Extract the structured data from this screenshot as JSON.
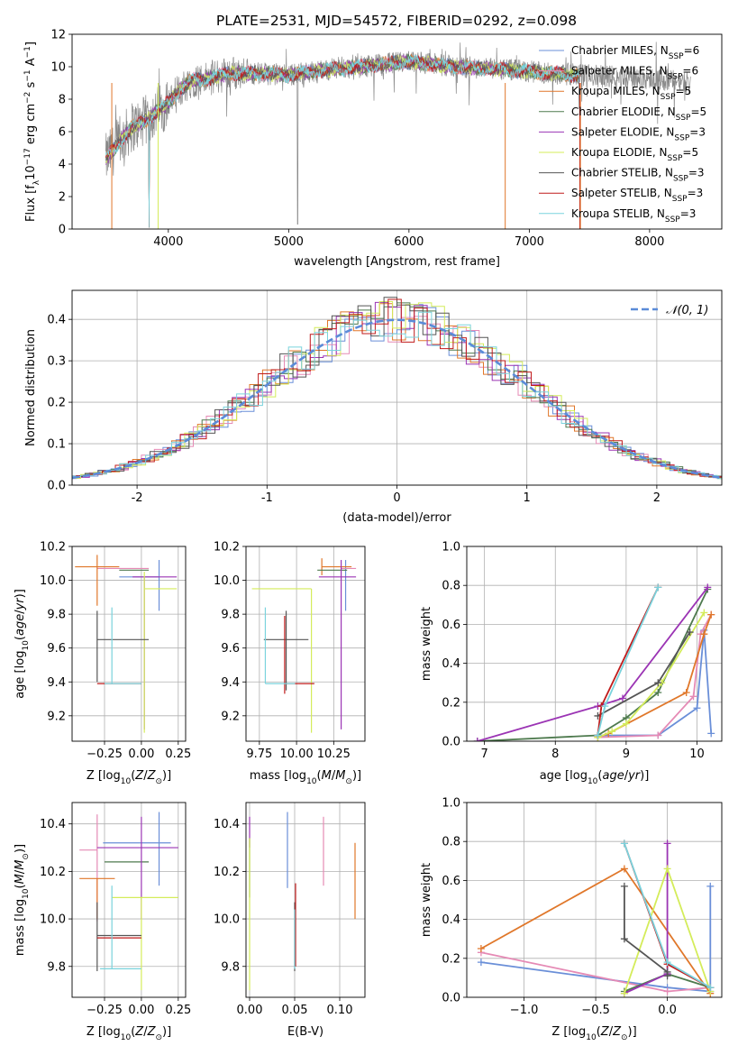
{
  "figure_title": "PLATE=2531, MJD=54572, FIBERID=0292, z=0.098",
  "colors": {
    "Chabrier MILES": "#6a8fd8",
    "Salpeter MILES": "#e58ab5",
    "Kroupa MILES": "#e0772a",
    "Chabrier ELODIE": "#4e7a4e",
    "Salpeter ELODIE": "#9b34b4",
    "Kroupa ELODIE": "#d4ec5a",
    "Chabrier STELIB": "#555555",
    "Salpeter STELIB": "#c01b1b",
    "Kroupa STELIB": "#7ad3dd",
    "data": "#888888"
  },
  "chart_data": [
    {
      "id": "spectrum",
      "type": "line",
      "title": "PLATE=2531, MJD=54572, FIBERID=0292, z=0.098",
      "xlabel": "wavelength [Angstrom, rest frame]",
      "ylabel": "Flux [f_λ 10^-17 erg cm^-2 s^-1 A^-1]",
      "xlim": [
        3200,
        8600
      ],
      "ylim": [
        0,
        12
      ],
      "xticks": [
        4000,
        5000,
        6000,
        7000,
        8000
      ],
      "yticks": [
        0,
        2,
        4,
        6,
        8,
        10,
        12
      ],
      "legend_position": "right",
      "legend": [
        {
          "label": "Chabrier MILES, N_SSP=6",
          "base": "Chabrier MILES, N",
          "sub": "SSP",
          "tail": "=6",
          "color_key": "Chabrier MILES"
        },
        {
          "label": "Salpeter MILES, N_SSP=6",
          "base": "Salpeter MILES, N",
          "sub": "SSP",
          "tail": "=6",
          "color_key": "Salpeter MILES"
        },
        {
          "label": "Kroupa MILES, N_SSP=5",
          "base": "Kroupa MILES, N",
          "sub": "SSP",
          "tail": "=5",
          "color_key": "Kroupa MILES"
        },
        {
          "label": "Chabrier ELODIE, N_SSP=5",
          "base": "Chabrier ELODIE, N",
          "sub": "SSP",
          "tail": "=5",
          "color_key": "Chabrier ELODIE"
        },
        {
          "label": "Salpeter ELODIE, N_SSP=3",
          "base": "Salpeter ELODIE, N",
          "sub": "SSP",
          "tail": "=3",
          "color_key": "Salpeter ELODIE"
        },
        {
          "label": "Kroupa ELODIE, N_SSP=5",
          "base": "Kroupa ELODIE, N",
          "sub": "SSP",
          "tail": "=5",
          "color_key": "Kroupa ELODIE"
        },
        {
          "label": "Chabrier STELIB, N_SSP=3",
          "base": "Chabrier STELIB, N",
          "sub": "SSP",
          "tail": "=3",
          "color_key": "Chabrier STELIB"
        },
        {
          "label": "Salpeter STELIB, N_SSP=3",
          "base": "Salpeter STELIB, N",
          "sub": "SSP",
          "tail": "=3",
          "color_key": "Salpeter STELIB"
        },
        {
          "label": "Kroupa STELIB, N_SSP=3",
          "base": "Kroupa STELIB, N",
          "sub": "SSP",
          "tail": "=3",
          "color_key": "Kroupa STELIB"
        }
      ],
      "continuum": {
        "x": [
          3480,
          3600,
          3700,
          3800,
          3900,
          4000,
          4100,
          4200,
          4300,
          4500,
          4700,
          5000,
          5300,
          5600,
          6000,
          6400,
          6800,
          7200,
          7600,
          8000,
          8340
        ],
        "y": [
          4.3,
          5.4,
          6.3,
          6.6,
          7.2,
          7.8,
          8.6,
          9.2,
          9.2,
          9.6,
          9.6,
          9.5,
          9.8,
          10.0,
          10.3,
          10.0,
          9.8,
          9.6,
          9.4,
          9.3,
          9.0
        ]
      },
      "data_range": [
        3480,
        8340
      ],
      "models_range": [
        3480,
        7420
      ]
    },
    {
      "id": "residuals",
      "type": "histogram",
      "xlabel": "(data-model)/error",
      "ylabel": "Normed distribution",
      "xlim": [
        -2.5,
        2.5
      ],
      "ylim": [
        0,
        0.47
      ],
      "xticks": [
        -2,
        -1,
        0,
        1,
        2
      ],
      "yticks": [
        0.0,
        0.1,
        0.2,
        0.3,
        0.4
      ],
      "legend": "𝒩(0, 1)",
      "legend_position": "top-right",
      "bin_width": 0.1,
      "reference": {
        "name": "𝒩(0, 1)",
        "mean": 0,
        "sigma": 1,
        "color": "#5b8bd8"
      }
    },
    {
      "id": "age-vs-Z",
      "type": "errorbar",
      "xlabel": "Z [log10(Z/Z⊙)]",
      "ylabel": "age [log10(age/yr)]",
      "xlim": [
        -0.47,
        0.3
      ],
      "ylim": [
        9.05,
        10.2
      ],
      "xticks": [
        -0.25,
        0.0,
        0.25
      ],
      "xticklabels": [
        "−0.25",
        "0.00",
        "0.25"
      ],
      "yticks": [
        9.2,
        9.4,
        9.6,
        9.8,
        10.0,
        10.2
      ],
      "points": [
        {
          "model": "Chabrier MILES",
          "x": 0.12,
          "xerr": [
            0.27,
            0.0
          ],
          "y": 10.02,
          "yerr": [
            0.2,
            0.1
          ]
        },
        {
          "model": "Salpeter MILES",
          "x": -0.3,
          "xerr": [
            0.0,
            0.35
          ],
          "y": 10.07,
          "yerr": [
            0.0,
            0.0
          ]
        },
        {
          "model": "Kroupa MILES",
          "x": -0.3,
          "xerr": [
            0.15,
            0.15
          ],
          "y": 10.08,
          "yerr": [
            0.23,
            0.07
          ]
        },
        {
          "model": "Chabrier ELODIE",
          "x": 0.05,
          "xerr": [
            0.2,
            0.0
          ],
          "y": 10.06,
          "yerr": [
            0.0,
            0.0
          ]
        },
        {
          "model": "Salpeter ELODIE",
          "x": 0.02,
          "xerr": [
            0.08,
            0.22
          ],
          "y": 10.02,
          "yerr": [
            0.9,
            0.0
          ]
        },
        {
          "model": "Kroupa ELODIE",
          "x": 0.02,
          "xerr": [
            0.0,
            0.22
          ],
          "y": 9.95,
          "yerr": [
            0.85,
            0.1
          ]
        },
        {
          "model": "Chabrier STELIB",
          "x": -0.3,
          "xerr": [
            0.0,
            0.35
          ],
          "y": 9.65,
          "yerr": [
            0.25,
            0.17
          ]
        },
        {
          "model": "Salpeter STELIB",
          "x": -0.2,
          "xerr": [
            0.1,
            0.2
          ],
          "y": 9.39,
          "yerr": [
            0.0,
            0.0
          ]
        },
        {
          "model": "Kroupa STELIB",
          "x": -0.2,
          "xerr": [
            0.05,
            0.2
          ],
          "y": 9.39,
          "yerr": [
            0.0,
            0.45
          ]
        }
      ]
    },
    {
      "id": "age-vs-mass",
      "type": "errorbar",
      "xlabel": "mass [log10(M/M⊙)]",
      "xlim": [
        9.66,
        10.46
      ],
      "ylim": [
        9.05,
        10.2
      ],
      "xticks": [
        9.75,
        10.0,
        10.25
      ],
      "xticklabels": [
        "9.75",
        "10.00",
        "10.25"
      ],
      "yticks": [
        9.2,
        9.4,
        9.6,
        9.8,
        10.0,
        10.2
      ],
      "points": [
        {
          "model": "Chabrier MILES",
          "x": 10.33,
          "xerr": [
            0.0,
            0.0
          ],
          "y": 10.02,
          "yerr": [
            0.2,
            0.1
          ]
        },
        {
          "model": "Salpeter MILES",
          "x": 10.3,
          "xerr": [
            0.0,
            0.1
          ],
          "y": 10.07,
          "yerr": [
            0.0,
            0.0
          ]
        },
        {
          "model": "Kroupa MILES",
          "x": 10.17,
          "xerr": [
            0.0,
            0.2
          ],
          "y": 10.08,
          "yerr": [
            0.05,
            0.05
          ]
        },
        {
          "model": "Chabrier ELODIE",
          "x": 10.24,
          "xerr": [
            0.1,
            0.1
          ],
          "y": 10.06,
          "yerr": [
            0.0,
            0.0
          ]
        },
        {
          "model": "Salpeter ELODIE",
          "x": 10.3,
          "xerr": [
            0.15,
            0.1
          ],
          "y": 10.02,
          "yerr": [
            0.9,
            0.1
          ]
        },
        {
          "model": "Kroupa ELODIE",
          "x": 10.1,
          "xerr": [
            0.4,
            0.0
          ],
          "y": 9.95,
          "yerr": [
            0.85,
            0.0
          ]
        },
        {
          "model": "Chabrier STELIB",
          "x": 9.93,
          "xerr": [
            0.15,
            0.15
          ],
          "y": 9.65,
          "yerr": [
            0.3,
            0.17
          ]
        },
        {
          "model": "Salpeter STELIB",
          "x": 9.92,
          "xerr": [
            0.0,
            0.2
          ],
          "y": 9.39,
          "yerr": [
            0.06,
            0.4
          ]
        },
        {
          "model": "Kroupa STELIB",
          "x": 9.79,
          "xerr": [
            0.0,
            0.2
          ],
          "y": 9.39,
          "yerr": [
            0.0,
            0.45
          ]
        }
      ]
    },
    {
      "id": "weights-vs-age",
      "type": "line",
      "xlabel": "age [log10(age/yr)]",
      "ylabel": "mass weight",
      "xlim": [
        6.75,
        10.35
      ],
      "ylim": [
        0,
        1.0
      ],
      "xticks": [
        7,
        8,
        9,
        10
      ],
      "yticks": [
        0.0,
        0.2,
        0.4,
        0.6,
        0.8,
        1.0
      ],
      "series": [
        {
          "model": "Chabrier MILES",
          "x": [
            8.6,
            9.45,
            10.0,
            10.1,
            10.2
          ],
          "y": [
            0.03,
            0.03,
            0.17,
            0.57,
            0.04
          ]
        },
        {
          "model": "Salpeter MILES",
          "x": [
            8.6,
            9.45,
            9.95,
            10.05,
            10.2
          ],
          "y": [
            0.02,
            0.03,
            0.23,
            0.55,
            0.65
          ]
        },
        {
          "model": "Kroupa MILES",
          "x": [
            8.6,
            8.75,
            9.85,
            10.1,
            10.2
          ],
          "y": [
            0.02,
            0.04,
            0.25,
            0.55,
            0.65
          ]
        },
        {
          "model": "Chabrier ELODIE",
          "x": [
            6.9,
            8.6,
            9.0,
            9.45,
            10.15
          ],
          "y": [
            0.0,
            0.03,
            0.12,
            0.25,
            0.78
          ]
        },
        {
          "model": "Salpeter ELODIE",
          "x": [
            6.9,
            8.6,
            8.95,
            10.15
          ],
          "y": [
            0.0,
            0.18,
            0.22,
            0.79
          ]
        },
        {
          "model": "Kroupa ELODIE",
          "x": [
            8.6,
            8.8,
            9.0,
            9.5,
            10.1
          ],
          "y": [
            0.02,
            0.05,
            0.09,
            0.3,
            0.66
          ]
        },
        {
          "model": "Chabrier STELIB",
          "x": [
            8.6,
            9.45,
            9.9
          ],
          "y": [
            0.13,
            0.3,
            0.56
          ]
        },
        {
          "model": "Salpeter STELIB",
          "x": [
            8.6,
            8.65,
            9.45
          ],
          "y": [
            0.03,
            0.18,
            0.79
          ]
        },
        {
          "model": "Kroupa STELIB",
          "x": [
            8.6,
            8.7,
            9.45
          ],
          "y": [
            0.03,
            0.18,
            0.79
          ]
        }
      ]
    },
    {
      "id": "mass-vs-Z",
      "type": "errorbar",
      "xlabel": "Z [log10(Z/Z⊙)]",
      "ylabel": "mass [log10(M/M⊙)]",
      "xlim": [
        -0.47,
        0.3
      ],
      "ylim": [
        9.67,
        10.49
      ],
      "xticks": [
        -0.25,
        0.0,
        0.25
      ],
      "xticklabels": [
        "−0.25",
        "0.00",
        "0.25"
      ],
      "yticks": [
        9.8,
        10.0,
        10.2,
        10.4
      ],
      "points": [
        {
          "model": "Chabrier MILES",
          "x": 0.12,
          "xerr": [
            0.38,
            0.08
          ],
          "y": 10.32,
          "yerr": [
            0.18,
            0.13
          ]
        },
        {
          "model": "Salpeter MILES",
          "x": -0.3,
          "xerr": [
            0.12,
            0.0
          ],
          "y": 10.29,
          "yerr": [
            0.3,
            0.15
          ]
        },
        {
          "model": "Kroupa MILES",
          "x": -0.3,
          "xerr": [
            0.12,
            0.12
          ],
          "y": 10.17,
          "yerr": [
            0.17,
            0.0
          ]
        },
        {
          "model": "Chabrier ELODIE",
          "x": -0.1,
          "xerr": [
            0.15,
            0.15
          ],
          "y": 10.24,
          "yerr": [
            0.0,
            0.0
          ]
        },
        {
          "model": "Salpeter ELODIE",
          "x": 0.0,
          "xerr": [
            0.3,
            0.25
          ],
          "y": 10.3,
          "yerr": [
            0.3,
            0.13
          ]
        },
        {
          "model": "Kroupa ELODIE",
          "x": 0.0,
          "xerr": [
            0.2,
            0.25
          ],
          "y": 10.09,
          "yerr": [
            0.39,
            0.0
          ]
        },
        {
          "model": "Chabrier STELIB",
          "x": -0.3,
          "xerr": [
            0.0,
            0.3
          ],
          "y": 9.93,
          "yerr": [
            0.15,
            0.14
          ]
        },
        {
          "model": "Salpeter STELIB",
          "x": -0.2,
          "xerr": [
            0.1,
            0.2
          ],
          "y": 9.92,
          "yerr": [
            0.0,
            0.0
          ]
        },
        {
          "model": "Kroupa STELIB",
          "x": -0.2,
          "xerr": [
            0.08,
            0.2
          ],
          "y": 9.79,
          "yerr": [
            0.0,
            0.35
          ]
        }
      ]
    },
    {
      "id": "mass-vs-EBV",
      "type": "errorbar",
      "xlabel": "E(B-V)",
      "xlim": [
        -0.004,
        0.128
      ],
      "ylim": [
        9.67,
        10.49
      ],
      "xticks": [
        0.0,
        0.05,
        0.1
      ],
      "xticklabels": [
        "0.00",
        "0.05",
        "0.10"
      ],
      "yticks": [
        9.8,
        10.0,
        10.2,
        10.4
      ],
      "points": [
        {
          "model": "Chabrier MILES",
          "x": 0.042,
          "xerr": [
            0,
            0
          ],
          "y": 10.32,
          "yerr": [
            0.19,
            0.13
          ]
        },
        {
          "model": "Salpeter MILES",
          "x": 0.082,
          "xerr": [
            0,
            0
          ],
          "y": 10.29,
          "yerr": [
            0.15,
            0.14
          ]
        },
        {
          "model": "Kroupa MILES",
          "x": 0.117,
          "xerr": [
            0,
            0
          ],
          "y": 10.17,
          "yerr": [
            0.17,
            0.15
          ]
        },
        {
          "model": "Chabrier ELODIE",
          "x": 0.0,
          "xerr": [
            0,
            0
          ],
          "y": 10.24,
          "yerr": [
            0.15,
            0.1
          ]
        },
        {
          "model": "Salpeter ELODIE",
          "x": 0.0,
          "xerr": [
            0,
            0
          ],
          "y": 10.3,
          "yerr": [
            0.0,
            0.13
          ]
        },
        {
          "model": "Kroupa ELODIE",
          "x": 0.0,
          "xerr": [
            0,
            0
          ],
          "y": 10.09,
          "yerr": [
            0.39,
            0.25
          ]
        },
        {
          "model": "Chabrier STELIB",
          "x": 0.05,
          "xerr": [
            0,
            0
          ],
          "y": 9.93,
          "yerr": [
            0.15,
            0.14
          ]
        },
        {
          "model": "Salpeter STELIB",
          "x": 0.051,
          "xerr": [
            0,
            0
          ],
          "y": 10.0,
          "yerr": [
            0.2,
            0.15
          ]
        },
        {
          "model": "Kroupa STELIB",
          "x": 0.05,
          "xerr": [
            0,
            0
          ],
          "y": 9.79,
          "yerr": [
            0.0,
            0.25
          ]
        }
      ]
    },
    {
      "id": "weights-vs-Z",
      "type": "line",
      "xlabel": "Z [log10(Z/Z⊙)]",
      "ylabel": "mass weight",
      "xlim": [
        -1.4,
        0.38
      ],
      "ylim": [
        0,
        1.0
      ],
      "xticks": [
        -1.0,
        -0.5,
        0.0
      ],
      "xticklabels": [
        "−1.0",
        "−0.5",
        "0.0"
      ],
      "yticks": [
        0.0,
        0.2,
        0.4,
        0.6,
        0.8,
        1.0
      ],
      "series": [
        {
          "model": "Chabrier MILES",
          "x": [
            -1.3,
            0.0,
            0.3,
            0.3
          ],
          "y": [
            0.18,
            0.05,
            0.03,
            0.57
          ]
        },
        {
          "model": "Salpeter MILES",
          "x": [
            -1.3,
            0.0,
            0.3
          ],
          "y": [
            0.23,
            0.03,
            0.05
          ]
        },
        {
          "model": "Kroupa MILES",
          "x": [
            -1.3,
            -0.3,
            0.3
          ],
          "y": [
            0.25,
            0.66,
            0.02
          ]
        },
        {
          "model": "Chabrier ELODIE",
          "x": [
            -0.3,
            0.0,
            0.3
          ],
          "y": [
            0.03,
            0.12,
            0.05
          ]
        },
        {
          "model": "Salpeter ELODIE",
          "x": [
            -0.3,
            0.0,
            0.0
          ],
          "y": [
            0.02,
            0.12,
            0.79
          ]
        },
        {
          "model": "Kroupa ELODIE",
          "x": [
            -0.3,
            0.0,
            0.3
          ],
          "y": [
            0.02,
            0.66,
            0.03
          ]
        },
        {
          "model": "Chabrier STELIB",
          "x": [
            -0.3,
            -0.3,
            0.0,
            0.0
          ],
          "y": [
            0.57,
            0.3,
            0.13,
            0.11
          ]
        },
        {
          "model": "Salpeter STELIB",
          "x": [
            -0.3,
            0.0,
            0.3
          ],
          "y": [
            0.79,
            0.17,
            0.05
          ]
        },
        {
          "model": "Kroupa STELIB",
          "x": [
            -0.3,
            0.0,
            0.3
          ],
          "y": [
            0.79,
            0.18,
            0.05
          ]
        }
      ]
    }
  ]
}
